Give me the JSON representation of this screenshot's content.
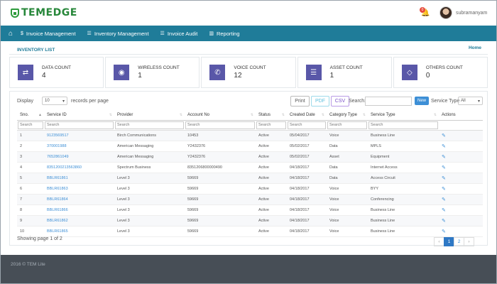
{
  "brand": {
    "name": "TEMEDGE",
    "accent": "#2e9b3c"
  },
  "header": {
    "notifications": "0",
    "username": "subramanyam"
  },
  "nav": [
    {
      "icon": "dollar-icon",
      "label": "Invoice Management"
    },
    {
      "icon": "list-icon",
      "label": "Inventory Management"
    },
    {
      "icon": "list-icon",
      "label": "Invoice Audit"
    },
    {
      "icon": "bar-chart-icon",
      "label": "Reporting"
    }
  ],
  "breadcrumb": {
    "title": "INVENTORY LIST",
    "home": "Home"
  },
  "cards": [
    {
      "icon": "arrows-icon",
      "label": "DATA COUNT",
      "value": "4"
    },
    {
      "icon": "wifi-icon",
      "label": "WIRELESS COUNT",
      "value": "1"
    },
    {
      "icon": "phone-icon",
      "label": "VOICE COUNT",
      "value": "12"
    },
    {
      "icon": "list-icon",
      "label": "ASSET COUNT",
      "value": "1"
    },
    {
      "icon": "diamond-icon",
      "label": "OTHERS COUNT",
      "value": "0"
    }
  ],
  "controls": {
    "display_label": "Display",
    "page_size": "10",
    "records_label": "records per page",
    "print": "Print",
    "pdf": "PDF",
    "csv": "CSV",
    "search_label": "Search:",
    "new": "New",
    "service_type_label": "Service Type",
    "service_type_value": "All"
  },
  "table": {
    "columns": [
      "Sno.",
      "Service ID",
      "Provider",
      "Account No",
      "Status",
      "Created Date",
      "Category Type",
      "Service Type",
      "Actions"
    ],
    "filter_placeholder": "Search",
    "rows": [
      [
        "1",
        "9123569517",
        "Birch Communications",
        "10453",
        "Active",
        "05/04/2017",
        "Voice",
        "Business Line"
      ],
      [
        "2",
        "370001988",
        "American Messaging",
        "Y2432376",
        "Active",
        "05/02/2017",
        "Data",
        "MPLS"
      ],
      [
        "3",
        "7652861049",
        "American Messaging",
        "Y2432376",
        "Active",
        "05/02/2017",
        "Asset",
        "Equipment"
      ],
      [
        "4",
        "8351200213563860",
        "Spectrum Business",
        "8351206800000490",
        "Active",
        "04/18/2017",
        "Data",
        "Internet Access"
      ],
      [
        "5",
        "BBLR61861",
        "Level 3",
        "59669",
        "Active",
        "04/18/2017",
        "Data",
        "Access Circuit"
      ],
      [
        "6",
        "BBLR61863",
        "Level 3",
        "59669",
        "Active",
        "04/18/2017",
        "Voice",
        "BYY"
      ],
      [
        "7",
        "BBLR61864",
        "Level 3",
        "59669",
        "Active",
        "04/18/2017",
        "Voice",
        "Conferencing"
      ],
      [
        "8",
        "BBLR61866",
        "Level 3",
        "59669",
        "Active",
        "04/18/2017",
        "Voice",
        "Business Line"
      ],
      [
        "9",
        "BBLR61862",
        "Level 3",
        "59669",
        "Active",
        "04/18/2017",
        "Voice",
        "Business Line"
      ],
      [
        "10",
        "BBLR61865",
        "Level 3",
        "59669",
        "Active",
        "04/18/2017",
        "Voice",
        "Business Line"
      ]
    ]
  },
  "pagination": {
    "showing": "Showing page 1 of 2",
    "prev": "‹",
    "pages": [
      "1",
      "2"
    ],
    "next": "›"
  },
  "footer": {
    "text": "2016 © TEM Lite"
  }
}
